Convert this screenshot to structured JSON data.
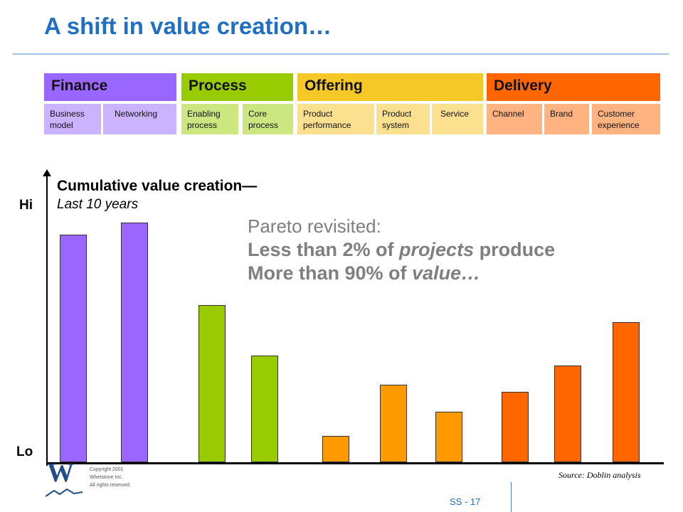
{
  "slide": {
    "title": "A shift in value creation…",
    "page_number": "SS - 17",
    "source": "Source: Doblin analysis",
    "copyright_lines": [
      "Copyright 2001",
      "Whetstone Inc.",
      "All rights reserved."
    ],
    "logo_letter": "W"
  },
  "categories": [
    {
      "name": "Finance",
      "header_color": "#9966ff",
      "sub_color": "#ccb3ff",
      "subs": [
        {
          "label": "Business\nmodel"
        },
        {
          "label": "Networking"
        }
      ]
    },
    {
      "name": "Process",
      "header_color": "#99cc00",
      "sub_color": "#cce680",
      "subs": [
        {
          "label": "Enabling\nprocess"
        },
        {
          "label": "Core\nprocess"
        }
      ]
    },
    {
      "name": "Offering",
      "header_color": "#f5c727",
      "sub_color": "#fbe08f",
      "subs": [
        {
          "label": "Product\nperformance"
        },
        {
          "label": "Product\nsystem"
        },
        {
          "label": "Service"
        }
      ]
    },
    {
      "name": "Delivery",
      "header_color": "#ff6600",
      "sub_color": "#ffb380",
      "subs": [
        {
          "label": "Channel"
        },
        {
          "label": "Brand"
        },
        {
          "label": "Customer\nexperience"
        }
      ]
    }
  ],
  "callout": {
    "line1": "Pareto revisited:",
    "line2_pre": "Less than 2% of ",
    "line2_em": "projects",
    "line2_post": " produce",
    "line3_pre": "More than 90% of ",
    "line3_em": "value…"
  },
  "chart_data": {
    "type": "bar",
    "title": "Cumulative value creation—",
    "subtitle": "Last 10 years",
    "ylabel_hi": "Hi",
    "ylabel_lo": "Lo",
    "ylim": [
      0,
      100
    ],
    "grid": false,
    "categories": [
      "Business model",
      "Networking",
      "Enabling process",
      "Core process",
      "Product performance",
      "Product system",
      "Service",
      "Channel",
      "Brand",
      "Customer experience"
    ],
    "values": [
      94,
      99,
      65,
      44,
      11,
      32,
      21,
      29,
      40,
      58
    ],
    "colors": [
      "#9966ff",
      "#9966ff",
      "#99cc00",
      "#99cc00",
      "#ff9900",
      "#ff9900",
      "#ff9900",
      "#ff6600",
      "#ff6600",
      "#ff6600"
    ]
  }
}
